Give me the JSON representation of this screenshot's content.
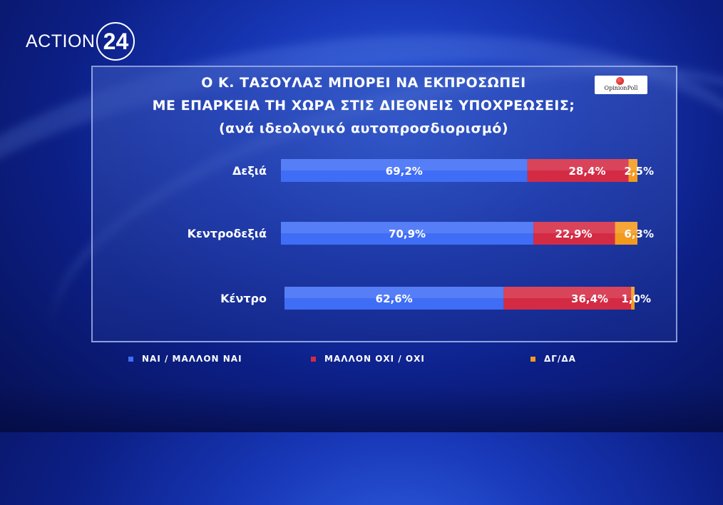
{
  "logo": {
    "text": "ACTION",
    "number": "24"
  },
  "brand": {
    "label": "OpinionPoll"
  },
  "title": {
    "line1": "Ο Κ. ΤΑΣΟΥΛΑΣ ΜΠΟΡΕΙ ΝΑ ΕΚΠΡΟΣΩΠΕΙ",
    "line2": "ΜΕ ΕΠΑΡΚΕΙΑ ΤΗ ΧΩΡΑ ΣΤΙΣ ΔΙΕΘΝΕΙΣ ΥΠΟΧΡΕΩΣΕΙΣ;",
    "line3": "(ανά ιδεολογικό αυτοπροσδιορισμό)"
  },
  "legend": {
    "yes": "ΝΑΙ / ΜΑΛΛΟΝ ΝΑΙ",
    "no": "ΜΑΛΛΟΝ ΟΧΙ / ΟΧΙ",
    "dk": "ΔΓ/ΔΑ"
  },
  "colors": {
    "yes": "#3f6df5",
    "no": "#d42b45",
    "dk": "#f39a1e"
  },
  "chart_data": {
    "type": "bar",
    "orientation": "horizontal",
    "stacked": true,
    "title": "Ο Κ. ΤΑΣΟΥΛΑΣ ΜΠΟΡΕΙ ΝΑ ΕΚΠΡΟΣΩΠΕΙ ΜΕ ΕΠΑΡΚΕΙΑ ΤΗ ΧΩΡΑ ΣΤΙΣ ΔΙΕΘΝΕΙΣ ΥΠΟΧΡΕΩΣΕΙΣ;",
    "subtitle": "(ανά ιδεολογικό αυτοπροσδιορισμό)",
    "categories": [
      "Δεξιά",
      "Κεντροδεξιά",
      "Κέντρο"
    ],
    "series": [
      {
        "name": "ΝΑΙ / ΜΑΛΛΟΝ ΝΑΙ",
        "values": [
          69.2,
          70.9,
          62.6
        ],
        "labels": [
          "69,2%",
          "70,9%",
          "62,6%"
        ]
      },
      {
        "name": "ΜΑΛΛΟΝ ΟΧΙ / ΟΧΙ",
        "values": [
          28.4,
          22.9,
          36.4
        ],
        "labels": [
          "28,4%",
          "22,9%",
          "36,4%"
        ]
      },
      {
        "name": "ΔΓ/ΔΑ",
        "values": [
          2.5,
          6.3,
          1.0
        ],
        "labels": [
          "2,5%",
          "6,3%",
          "1,0%"
        ]
      }
    ],
    "xlim": [
      0,
      100
    ],
    "legend_position": "bottom",
    "grid": false
  }
}
